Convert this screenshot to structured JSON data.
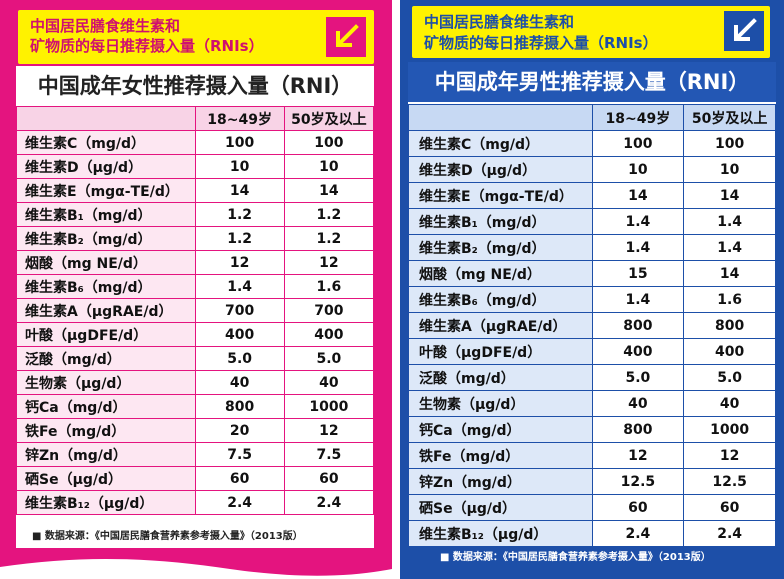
{
  "banner": {
    "line1": "中国居民膳食维生素和",
    "line2": "矿物质的每日推荐摄入量（RNIs）"
  },
  "female": {
    "title": "中国成年女性推荐摄入量（RNI）",
    "headers": [
      "",
      "18~49岁",
      "50岁及以上"
    ],
    "rows": [
      [
        "维生素C（mg/d）",
        "100",
        "100"
      ],
      [
        "维生素D（μg/d）",
        "10",
        "10"
      ],
      [
        "维生素E（mgα-TE/d）",
        "14",
        "14"
      ],
      [
        "维生素B₁（mg/d）",
        "1.2",
        "1.2"
      ],
      [
        "维生素B₂（mg/d）",
        "1.2",
        "1.2"
      ],
      [
        "烟酸（mg NE/d）",
        "12",
        "12"
      ],
      [
        "维生素B₆（mg/d）",
        "1.4",
        "1.6"
      ],
      [
        "维生素A（μgRAE/d）",
        "700",
        "700"
      ],
      [
        "叶酸（μgDFE/d）",
        "400",
        "400"
      ],
      [
        "泛酸（mg/d）",
        "5.0",
        "5.0"
      ],
      [
        "生物素（μg/d）",
        "40",
        "40"
      ],
      [
        "钙Ca（mg/d）",
        "800",
        "1000"
      ],
      [
        "铁Fe（mg/d）",
        "20",
        "12"
      ],
      [
        "锌Zn（mg/d）",
        "7.5",
        "7.5"
      ],
      [
        "硒Se（μg/d）",
        "60",
        "60"
      ],
      [
        "维生素B₁₂（μg/d）",
        "2.4",
        "2.4"
      ]
    ],
    "source": "■ 数据来源：《中国居民膳食营养素参考摄入量》（2013版）"
  },
  "male": {
    "title": "中国成年男性推荐摄入量（RNI）",
    "headers": [
      "",
      "18~49岁",
      "50岁及以上"
    ],
    "rows": [
      [
        "维生素C（mg/d）",
        "100",
        "100"
      ],
      [
        "维生素D（μg/d）",
        "10",
        "10"
      ],
      [
        "维生素E（mgα-TE/d）",
        "14",
        "14"
      ],
      [
        "维生素B₁（mg/d）",
        "1.4",
        "1.4"
      ],
      [
        "维生素B₂（mg/d）",
        "1.4",
        "1.4"
      ],
      [
        "烟酸（mg NE/d）",
        "15",
        "14"
      ],
      [
        "维生素B₆（mg/d）",
        "1.4",
        "1.6"
      ],
      [
        "维生素A（μgRAE/d）",
        "800",
        "800"
      ],
      [
        "叶酸（μgDFE/d）",
        "400",
        "400"
      ],
      [
        "泛酸（mg/d）",
        "5.0",
        "5.0"
      ],
      [
        "生物素（μg/d）",
        "40",
        "40"
      ],
      [
        "钙Ca（mg/d）",
        "800",
        "1000"
      ],
      [
        "铁Fe（mg/d）",
        "12",
        "12"
      ],
      [
        "锌Zn（mg/d）",
        "12.5",
        "12.5"
      ],
      [
        "硒Se（μg/d）",
        "60",
        "60"
      ],
      [
        "维生素B₁₂（μg/d）",
        "2.4",
        "2.4"
      ]
    ],
    "source": "■ 数据来源：《中国居民膳食营养素参考摄入量》（2013版）"
  },
  "colors": {
    "female_accent": "#e4147f",
    "male_accent": "#1d4fa8",
    "banner": "#fff200"
  },
  "icons": {
    "banner_arrow": "arrow-down-left-icon"
  }
}
